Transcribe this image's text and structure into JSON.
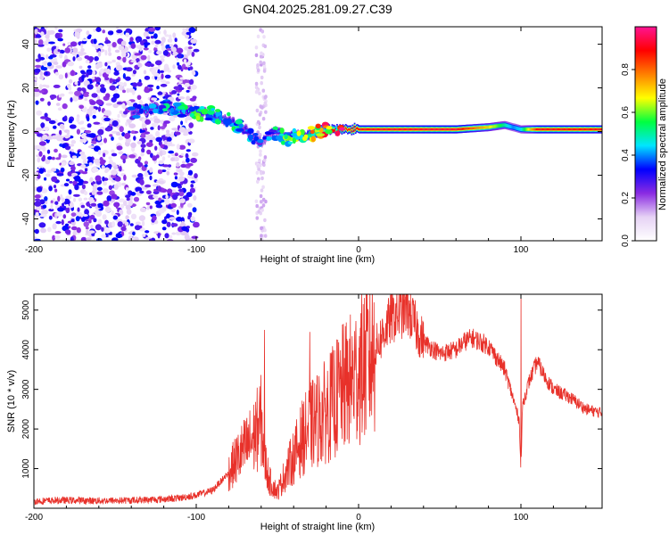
{
  "title": "GN04.2025.281.09.27.C39",
  "colors": {
    "snr_line": "#e8312a",
    "frame": "#000000"
  },
  "chart_data": [
    {
      "type": "heatmap",
      "panel": "spectrogram",
      "xlabel": "Height of straight line (km)",
      "ylabel": "Frequency (Hz)",
      "xlim": [
        -200,
        150
      ],
      "ylim": [
        -50,
        48
      ],
      "xticks": [
        -200,
        -100,
        0,
        100
      ],
      "yticks": [
        40,
        20,
        0,
        -20,
        -40
      ],
      "colorbar": {
        "label": "Normalized spectral amplitude",
        "range": [
          0,
          1
        ],
        "ticks": [
          0.0,
          0.2,
          0.4,
          0.6,
          0.8
        ],
        "tick_labels": [
          "0.0",
          "0.2",
          "0.4",
          "0.6",
          "0.8"
        ],
        "stops": [
          "#ffffff",
          "#e6d2f5",
          "#8a2be2",
          "#0000ff",
          "#00e5ff",
          "#00ff40",
          "#ffff00",
          "#ff8000",
          "#ff0000",
          "#ff1493"
        ]
      },
      "ridge": {
        "description": "frequency ridge center vs height",
        "x": [
          -140,
          -130,
          -120,
          -110,
          -100,
          -90,
          -80,
          -70,
          -65,
          -60,
          -55,
          -50,
          -45,
          -40,
          -35,
          -30,
          -25,
          -20,
          -10,
          0,
          20,
          60,
          80,
          90,
          95,
          100,
          110,
          150
        ],
        "y": [
          9,
          10,
          11,
          10,
          9,
          8,
          5,
          1,
          -3,
          -5,
          -1,
          0,
          -3,
          -2,
          -2,
          -1,
          0,
          1,
          1,
          1,
          1,
          1,
          2,
          3,
          2,
          1,
          1,
          1
        ],
        "amplitude": [
          0.35,
          0.45,
          0.4,
          0.45,
          0.5,
          0.45,
          0.45,
          0.4,
          0.4,
          0.3,
          0.35,
          0.45,
          0.5,
          0.5,
          0.55,
          0.6,
          0.7,
          0.8,
          0.85,
          0.9,
          0.92,
          0.93,
          0.7,
          0.5,
          0.4,
          0.45,
          0.9,
          0.9
        ]
      },
      "noise_region": {
        "x_range": [
          -200,
          -100
        ],
        "amplitude": [
          0.2,
          0.35
        ]
      }
    },
    {
      "type": "line",
      "panel": "snr",
      "xlabel": "Height of straight line (km)",
      "ylabel": "SNR (10 * v/v)",
      "xlim": [
        -200,
        150
      ],
      "ylim": [
        0,
        5400
      ],
      "xticks": [
        -200,
        -100,
        0,
        100
      ],
      "yticks": [
        1000,
        2000,
        3000,
        4000,
        5000
      ],
      "series": [
        {
          "name": "SNR",
          "x": [
            -200,
            -180,
            -160,
            -140,
            -120,
            -110,
            -100,
            -90,
            -80,
            -75,
            -70,
            -65,
            -60,
            -58,
            -55,
            -50,
            -45,
            -40,
            -35,
            -30,
            -25,
            -20,
            -15,
            -10,
            -5,
            0,
            5,
            10,
            15,
            20,
            25,
            30,
            35,
            40,
            50,
            60,
            65,
            70,
            80,
            90,
            95,
            99,
            100,
            101,
            105,
            108,
            110,
            115,
            120,
            130,
            140,
            150
          ],
          "y": [
            180,
            200,
            190,
            200,
            230,
            260,
            330,
            450,
            900,
            1250,
            1500,
            1750,
            2200,
            1300,
            700,
            400,
            900,
            1300,
            1750,
            2050,
            2250,
            2450,
            2700,
            3000,
            3200,
            3450,
            3700,
            4000,
            4400,
            4800,
            4900,
            5050,
            4600,
            4200,
            3900,
            4000,
            4200,
            4300,
            4100,
            3500,
            2800,
            2200,
            900,
            2600,
            3200,
            3500,
            3700,
            3300,
            3000,
            2800,
            2500,
            2400
          ]
        }
      ],
      "spikes": [
        {
          "x": -58,
          "y": 4500
        },
        {
          "x": -30,
          "y": 4450
        },
        {
          "x": 30,
          "y": 5400
        },
        {
          "x": 100,
          "y": 5400
        }
      ]
    }
  ]
}
